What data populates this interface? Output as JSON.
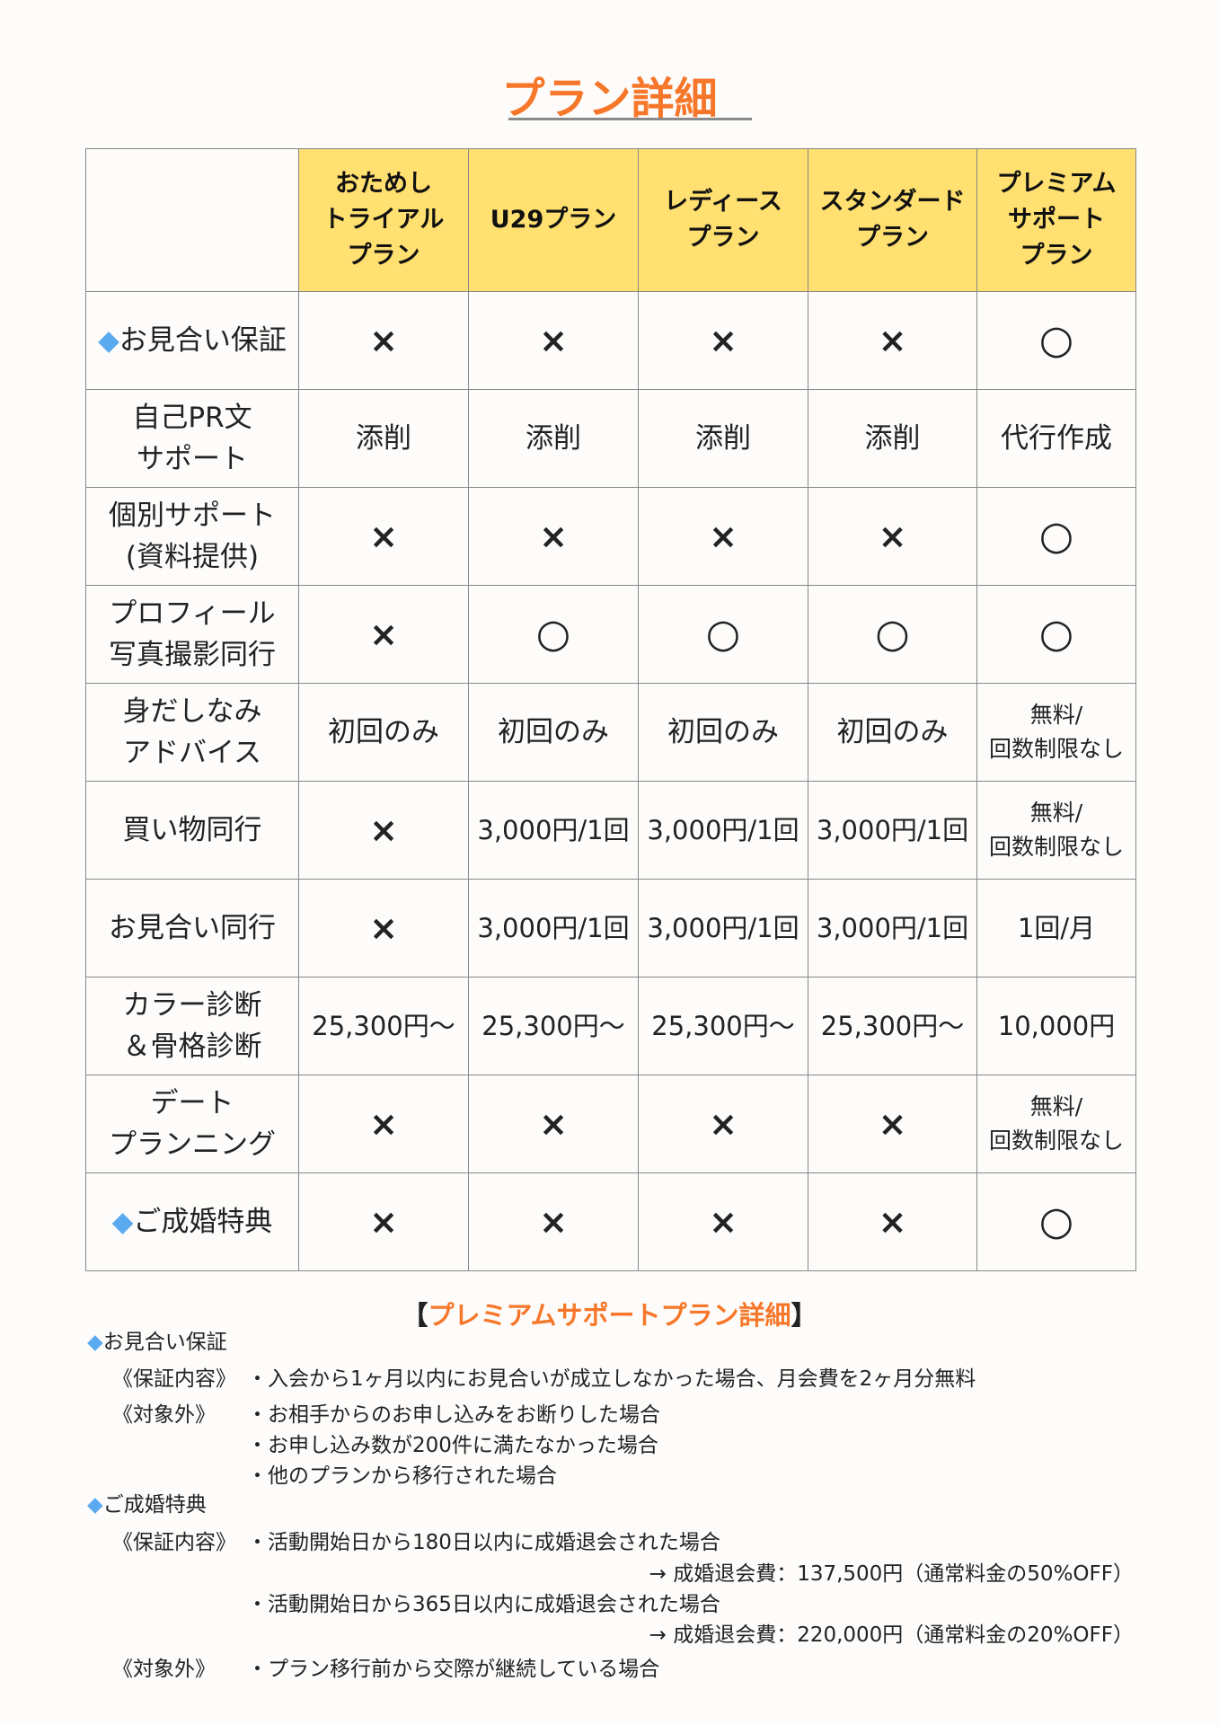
{
  "title": "プラン詳細",
  "table": {
    "headers": [
      "おためし\nトライアル\nプラン",
      "U29プラン",
      "レディース\nプラン",
      "スタンダード\nプラン",
      "プレミアム\nサポート\nプラン"
    ],
    "rows": [
      {
        "label": "お見合い保証",
        "diamond": true,
        "cells": [
          "×",
          "×",
          "×",
          "×",
          "○"
        ]
      },
      {
        "label": "自己PR文\nサポート",
        "cells": [
          "添削",
          "添削",
          "添削",
          "添削",
          "代行作成"
        ]
      },
      {
        "label": "個別サポート\n(資料提供)",
        "cells": [
          "×",
          "×",
          "×",
          "×",
          "○"
        ]
      },
      {
        "label": "プロフィール\n写真撮影同行",
        "cells": [
          "×",
          "○",
          "○",
          "○",
          "○"
        ]
      },
      {
        "label": "身だしなみ\nアドバイス",
        "cells": [
          "初回のみ",
          "初回のみ",
          "初回のみ",
          "初回のみ",
          "無料/\n回数制限なし"
        ]
      },
      {
        "label": "買い物同行",
        "cells": [
          "×",
          "3,000円/1回",
          "3,000円/1回",
          "3,000円/1回",
          "無料/\n回数制限なし"
        ]
      },
      {
        "label": "お見合い同行",
        "cells": [
          "×",
          "3,000円/1回",
          "3,000円/1回",
          "3,000円/1回",
          "1回/月"
        ]
      },
      {
        "label": "カラー診断\n＆骨格診断",
        "cells": [
          "25,300円〜",
          "25,300円〜",
          "25,300円〜",
          "25,300円〜",
          "10,000円"
        ]
      },
      {
        "label": "デート\nプランニング",
        "cells": [
          "×",
          "×",
          "×",
          "×",
          "無料/\n回数制限なし"
        ]
      },
      {
        "label": "ご成婚特典",
        "diamond": true,
        "cells": [
          "×",
          "×",
          "×",
          "×",
          "○"
        ]
      }
    ]
  },
  "details": {
    "bracket_open": "【",
    "title": "プレミアムサポートプラン詳細",
    "bracket_close": "】",
    "diamond": "◆",
    "section1": {
      "heading": "お見合い保証",
      "label1": "《保証内容》",
      "item1": "・入会から1ヶ月以内にお見合いが成立しなかった場合、月会費を2ヶ月分無料",
      "label2": "《対象外》",
      "item2": "・お相手からのお申し込みをお断りした場合",
      "item3": "・お申し込み数が200件に満たなかった場合",
      "item4": "・他のプランから移行された場合"
    },
    "section2": {
      "heading": "ご成婚特典",
      "label1": "《保証内容》",
      "item1": "・活動開始日から180日以内に成婚退会された場合",
      "item1_note": "→ 成婚退会費：137,500円（通常料金の50%OFF）",
      "item2": "・活動開始日から365日以内に成婚退会された場合",
      "item2_note": "→ 成婚退会費：220,000円（通常料金の20%OFF）",
      "label2": "《対象外》",
      "item3": "・プラン移行前から交際が継続している場合"
    }
  },
  "colors": {
    "accent": "#f7772a",
    "header_bg": "#ffe070",
    "diamond": "#5aaaf0"
  }
}
